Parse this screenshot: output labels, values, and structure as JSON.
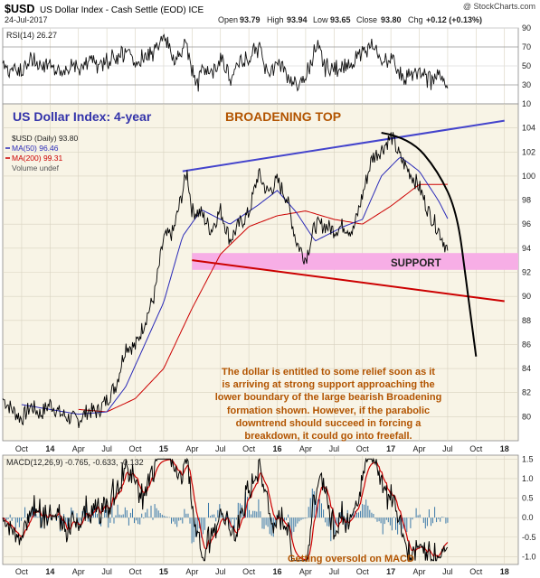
{
  "header": {
    "symbol": "$USD",
    "description": "US Dollar Index - Cash Settle (EOD) ICE",
    "watermark": "@ StockCharts.com",
    "date": "24-Jul-2017",
    "open_label": "Open",
    "open": "93.79",
    "high_label": "High",
    "high": "93.94",
    "low_label": "Low",
    "low": "93.65",
    "close_label": "Close",
    "close": "93.80",
    "chg_label": "Chg",
    "chg": "+0.12 (+0.13%)"
  },
  "colors": {
    "price": "#000000",
    "ma50": "#2b2bb8",
    "ma200": "#cc0000",
    "trend_upper": "#4444cc",
    "trend_lower": "#cc0000",
    "support_band": "#f7aee6",
    "price_bg": "#f8f4e6",
    "macd_bg": "#f8f4e6",
    "histogram": "#3a78a8",
    "annotation": "#b25400",
    "title_blue": "#3333aa",
    "broadening": "#b25400"
  },
  "chart_data": [
    {
      "type": "line",
      "panel": "rsi",
      "title": "RSI(14) 26.27",
      "ylim": [
        10,
        90
      ],
      "y_ticks": [
        10,
        30,
        50,
        70,
        90
      ],
      "series": [
        {
          "name": "RSI(14)",
          "last": 26.27
        }
      ]
    },
    {
      "type": "line",
      "panel": "price",
      "title": "US Dollar Index: 4-year",
      "pattern_label": "BROADENING TOP",
      "support_label": "SUPPORT",
      "legend": [
        "$USD (Daily) 93.80",
        "MA(50) 96.46",
        "MA(200) 99.31",
        "Volume undef"
      ],
      "ylim": [
        78,
        106
      ],
      "y_ticks": [
        80,
        82,
        84,
        86,
        88,
        90,
        92,
        94,
        96,
        98,
        100,
        102,
        104
      ],
      "x_ticks": [
        "Oct",
        "14",
        "Apr",
        "Jul",
        "Oct",
        "15",
        "Apr",
        "Jul",
        "Oct",
        "16",
        "Apr",
        "Jul",
        "Oct",
        "17",
        "Apr",
        "Jul",
        "Oct",
        "18"
      ],
      "x_tick_dates": [
        "2013-10",
        "2014-01",
        "2014-04",
        "2014-07",
        "2014-10",
        "2015-01",
        "2015-04",
        "2015-07",
        "2015-10",
        "2016-01",
        "2016-04",
        "2016-07",
        "2016-10",
        "2017-01",
        "2017-04",
        "2017-07",
        "2017-10",
        "2018-01"
      ],
      "series": [
        {
          "name": "$USD (Daily)",
          "last": 93.8,
          "points": [
            [
              "2013-08",
              81.5
            ],
            [
              "2013-09",
              80.6
            ],
            [
              "2013-10",
              79.8
            ],
            [
              "2013-11",
              80.9
            ],
            [
              "2013-12",
              80.2
            ],
            [
              "2014-01",
              81.1
            ],
            [
              "2014-02",
              80.3
            ],
            [
              "2014-03",
              79.9
            ],
            [
              "2014-04",
              79.7
            ],
            [
              "2014-05",
              80.5
            ],
            [
              "2014-06",
              80.4
            ],
            [
              "2014-07",
              81.4
            ],
            [
              "2014-08",
              82.7
            ],
            [
              "2014-09",
              85.9
            ],
            [
              "2014-10",
              85.8
            ],
            [
              "2014-11",
              87.9
            ],
            [
              "2014-12",
              90.0
            ],
            [
              "2015-01",
              94.8
            ],
            [
              "2015-02",
              95.3
            ],
            [
              "2015-03",
              98.7
            ],
            [
              "2015-03-15",
              100.4
            ],
            [
              "2015-04",
              97.1
            ],
            [
              "2015-05",
              96.9
            ],
            [
              "2015-06",
              95.5
            ],
            [
              "2015-07",
              97.2
            ],
            [
              "2015-08",
              94.7
            ],
            [
              "2015-09",
              96.0
            ],
            [
              "2015-10",
              96.9
            ],
            [
              "2015-11",
              100.2
            ],
            [
              "2015-12",
              98.6
            ],
            [
              "2016-01",
              99.6
            ],
            [
              "2016-02",
              98.2
            ],
            [
              "2016-03",
              94.6
            ],
            [
              "2016-04",
              93.1
            ],
            [
              "2016-05",
              95.9
            ],
            [
              "2016-06",
              95.9
            ],
            [
              "2016-07",
              95.5
            ],
            [
              "2016-08",
              95.9
            ],
            [
              "2016-09",
              95.4
            ],
            [
              "2016-10",
              98.4
            ],
            [
              "2016-11",
              101.5
            ],
            [
              "2016-12",
              102.2
            ],
            [
              "2017-01-03",
              103.3
            ],
            [
              "2017-02",
              101.5
            ],
            [
              "2017-03",
              100.3
            ],
            [
              "2017-04",
              99.1
            ],
            [
              "2017-05",
              97.0
            ],
            [
              "2017-06",
              95.6
            ],
            [
              "2017-07",
              93.8
            ]
          ]
        },
        {
          "name": "MA(50)",
          "last": 96.46,
          "points": [
            [
              "2013-10",
              81.0
            ],
            [
              "2014-04",
              80.2
            ],
            [
              "2014-07",
              80.4
            ],
            [
              "2014-09",
              82.5
            ],
            [
              "2014-11",
              86.0
            ],
            [
              "2015-01",
              89.5
            ],
            [
              "2015-03",
              95.0
            ],
            [
              "2015-05",
              97.2
            ],
            [
              "2015-08",
              96.0
            ],
            [
              "2015-11",
              97.6
            ],
            [
              "2016-01",
              98.8
            ],
            [
              "2016-03",
              97.0
            ],
            [
              "2016-05",
              94.6
            ],
            [
              "2016-08",
              95.8
            ],
            [
              "2016-10",
              96.4
            ],
            [
              "2016-12",
              100.0
            ],
            [
              "2017-02",
              101.6
            ],
            [
              "2017-04",
              100.4
            ],
            [
              "2017-06",
              98.0
            ],
            [
              "2017-07",
              96.46
            ]
          ]
        },
        {
          "name": "MA(200)",
          "last": 99.31,
          "points": [
            [
              "2014-04",
              80.6
            ],
            [
              "2014-07",
              80.4
            ],
            [
              "2014-10",
              81.5
            ],
            [
              "2015-01",
              84.0
            ],
            [
              "2015-04",
              89.0
            ],
            [
              "2015-07",
              93.5
            ],
            [
              "2015-10",
              95.8
            ],
            [
              "2016-01",
              96.7
            ],
            [
              "2016-04",
              97.1
            ],
            [
              "2016-07",
              96.4
            ],
            [
              "2016-10",
              96.0
            ],
            [
              "2017-01",
              97.5
            ],
            [
              "2017-04",
              99.3
            ],
            [
              "2017-07",
              99.31
            ]
          ]
        }
      ],
      "trendlines": [
        {
          "name": "upper",
          "from": [
            "2015-03",
            100.4
          ],
          "to": [
            "2018-01",
            104.6
          ]
        },
        {
          "name": "lower",
          "from": [
            "2015-04",
            93.0
          ],
          "to": [
            "2018-01",
            89.6
          ]
        },
        {
          "name": "parabolic",
          "points": [
            [
              "2016-12",
              103.6
            ],
            [
              "2017-03",
              103.2
            ],
            [
              "2017-06",
              100.4
            ],
            [
              "2017-08",
              97.0
            ],
            [
              "2017-09",
              91.0
            ],
            [
              "2017-10",
              85.0
            ]
          ]
        }
      ],
      "support_zone": {
        "from": [
          "2015-04",
          92.2
        ],
        "to": [
          "2018-01",
          93.6
        ]
      },
      "annotation": [
        "The dollar is entitled to some relief soon as it",
        "is arriving at strong support approaching the",
        "lower boundary of the large bearish Broadening",
        "formation shown. However, if the parabolic",
        "downtrend should succeed in forcing a",
        "breakdown, it could go into freefall."
      ]
    },
    {
      "type": "line",
      "panel": "macd",
      "title": "MACD(12,26,9) -0.765, -0.633, -0.132",
      "annotation": "Getting oversold on MACD",
      "ylim": [
        -1.2,
        1.6
      ],
      "y_ticks": [
        -1.0,
        -0.5,
        0.0,
        0.5,
        1.0,
        1.5
      ],
      "series": [
        {
          "name": "MACD",
          "last": -0.765
        },
        {
          "name": "Signal",
          "last": -0.633
        },
        {
          "name": "Histogram",
          "last": -0.132
        }
      ]
    }
  ]
}
